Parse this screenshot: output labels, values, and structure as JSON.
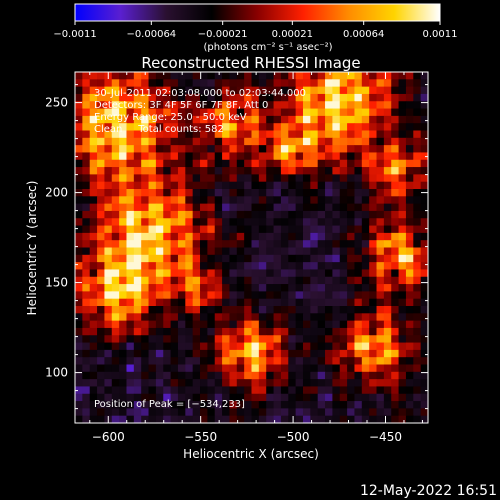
{
  "chart_data": {
    "type": "heatmap",
    "title": "Reconstructed RHESSI Image",
    "xlabel": "Heliocentric X (arcsec)",
    "ylabel": "Heliocentric Y (arcsec)",
    "xlim": [
      -618,
      -427
    ],
    "ylim": [
      72,
      267
    ],
    "x_ticks": [
      -600,
      -550,
      -500,
      -450
    ],
    "x_tick_labels": [
      "−600",
      "−550",
      "−500",
      "−450"
    ],
    "y_ticks": [
      100,
      150,
      200,
      250
    ],
    "y_tick_labels": [
      "100",
      "150",
      "200",
      "250"
    ],
    "colorbar": {
      "range": [
        -0.0011,
        0.0011
      ],
      "tick_labels": [
        "−0.0011",
        "−0.00064",
        "−0.00021",
        "0.00021",
        "0.00064",
        "0.0011"
      ],
      "unit_label": "(photons cm⁻² s⁻¹ asec⁻²)",
      "stops": [
        "#0000ff",
        "#5a1fd0",
        "#2a1030",
        "#000000",
        "#8a0000",
        "#ff2000",
        "#ff8c00",
        "#ffd400",
        "#ffffff"
      ]
    },
    "peak_position": [
      -534,
      233
    ]
  },
  "annotations": {
    "line1": "30-Jul-2011 02:03:08.000 to 02:03:44.000",
    "line2": "Detectors: 3F 4F 5F 6F 7F 8F, Att 0",
    "line3": "Energy Range: 25.0 - 50.0 keV",
    "line4": "Clean     Total counts: 582",
    "peak": "Position of Peak = [−534,233]"
  },
  "footer": {
    "timestamp": "12-May-2022 16:51"
  }
}
